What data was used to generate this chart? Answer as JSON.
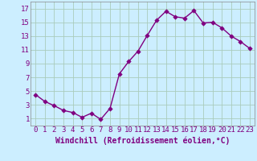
{
  "x": [
    0,
    1,
    2,
    3,
    4,
    5,
    6,
    7,
    8,
    9,
    10,
    11,
    12,
    13,
    14,
    15,
    16,
    17,
    18,
    19,
    20,
    21,
    22,
    23
  ],
  "y": [
    4.5,
    3.5,
    2.9,
    2.2,
    1.9,
    1.2,
    1.8,
    0.9,
    2.5,
    7.5,
    9.3,
    10.8,
    13.1,
    15.3,
    16.6,
    15.8,
    15.6,
    16.7,
    14.9,
    15.0,
    14.2,
    13.0,
    12.2,
    11.2
  ],
  "line_color": "#800080",
  "marker_color": "#800080",
  "bg_color": "#cceeff",
  "grid_color": "#aaccbb",
  "xlabel": "Windchill (Refroidissement éolien,°C)",
  "ylabel": "",
  "title": "",
  "xlim": [
    -0.5,
    23.5
  ],
  "ylim": [
    0,
    18
  ],
  "xticks": [
    0,
    1,
    2,
    3,
    4,
    5,
    6,
    7,
    8,
    9,
    10,
    11,
    12,
    13,
    14,
    15,
    16,
    17,
    18,
    19,
    20,
    21,
    22,
    23
  ],
  "yticks": [
    1,
    3,
    5,
    7,
    9,
    11,
    13,
    15,
    17
  ],
  "font_color": "#800080",
  "font_size": 6.5,
  "xlabel_fontsize": 7,
  "linewidth": 1.0,
  "markersize": 2.8
}
